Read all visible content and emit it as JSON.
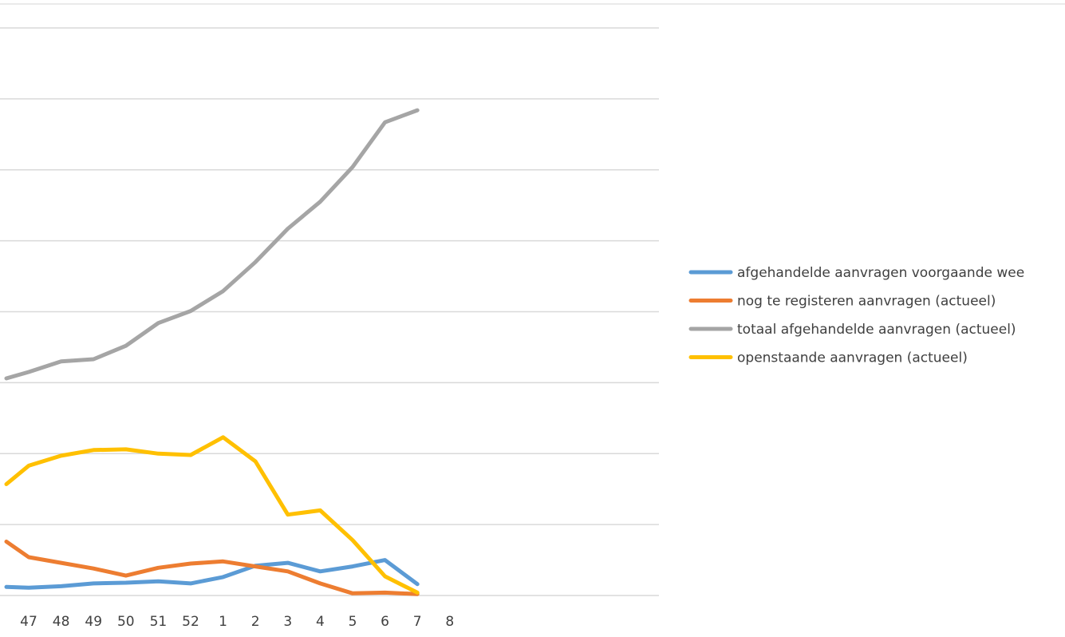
{
  "chart_data": {
    "type": "line",
    "x": [
      "47",
      "48",
      "49",
      "50",
      "51",
      "52",
      "1",
      "2",
      "3",
      "4",
      "5",
      "6",
      "7",
      "8"
    ],
    "ylim": [
      0,
      8
    ],
    "grid": true,
    "legend_position": "right",
    "series": [
      {
        "name": "afgehandelde aanvragen voorgaande week",
        "color": "#5B9BD5",
        "values": [
          0.11,
          0.13,
          0.17,
          0.18,
          0.2,
          0.17,
          0.26,
          0.42,
          0.46,
          0.34,
          0.41,
          0.5,
          0.16,
          null
        ],
        "start_value": 0.12
      },
      {
        "name": "nog te registeren aanvragen (actueel)",
        "color": "#ED7D31",
        "values": [
          0.54,
          0.46,
          0.38,
          0.28,
          0.39,
          0.45,
          0.48,
          0.41,
          0.34,
          0.17,
          0.03,
          0.04,
          0.02,
          null
        ],
        "start_value": 0.76
      },
      {
        "name": "totaal afgehandelde aanvragen (actueel)",
        "color": "#A5A5A5",
        "values": [
          3.15,
          3.3,
          3.33,
          3.52,
          3.84,
          4.01,
          4.29,
          4.7,
          5.17,
          5.55,
          6.04,
          6.67,
          6.84,
          null
        ],
        "start_value": 3.06
      },
      {
        "name": "openstaande aanvragen (actueel)",
        "color": "#FFC000",
        "values": [
          1.83,
          1.97,
          2.05,
          2.06,
          2.0,
          1.98,
          2.23,
          1.89,
          1.14,
          1.2,
          0.78,
          0.27,
          0.04,
          null
        ],
        "start_value": 1.57
      }
    ]
  },
  "legend": {
    "items": [
      {
        "label": "afgehandelde aanvragen voorgaande wee",
        "color": "#5B9BD5"
      },
      {
        "label": "nog te registeren aanvragen (actueel)",
        "color": "#ED7D31"
      },
      {
        "label": "totaal afgehandelde aanvragen (actueel)",
        "color": "#A5A5A5"
      },
      {
        "label": "openstaande aanvragen (actueel)",
        "color": "#FFC000"
      }
    ]
  }
}
